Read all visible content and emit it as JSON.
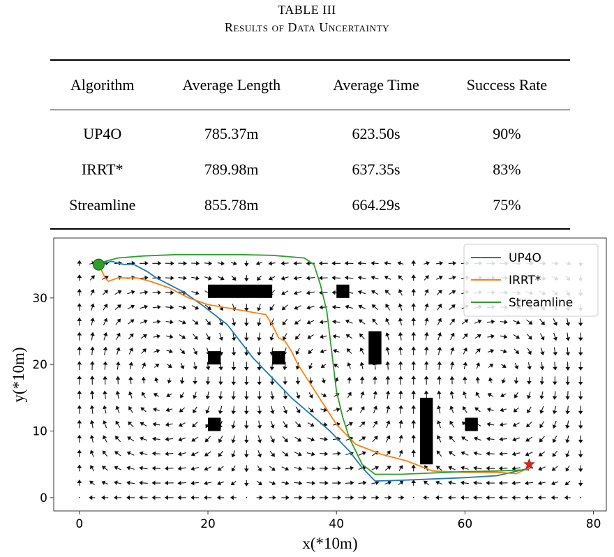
{
  "caption": {
    "label": "TABLE III",
    "title": "Results of Data Uncertainty"
  },
  "table": {
    "headers": [
      "Algorithm",
      "Average Length",
      "Average Time",
      "Success Rate"
    ],
    "rows": [
      [
        "UP4O",
        "785.37m",
        "623.50s",
        "90%"
      ],
      [
        "IRRT*",
        "789.98m",
        "637.35s",
        "83%"
      ],
      [
        "Streamline",
        "855.78m",
        "664.29s",
        "75%"
      ]
    ]
  },
  "chart_data": {
    "type": "line",
    "xlabel": "x(*10m)",
    "ylabel": "y(*10m)",
    "xlim": [
      -4,
      82
    ],
    "ylim": [
      -2,
      39
    ],
    "xticks": [
      "0",
      "20",
      "40",
      "60",
      "80"
    ],
    "yticks": [
      "0",
      "10",
      "20",
      "30"
    ],
    "legend": "top-right",
    "start": {
      "x": 3,
      "y": 35,
      "color": "#2ca02c"
    },
    "goal": {
      "x": 70,
      "y": 5,
      "color": "#d62728"
    },
    "obstacles": [
      {
        "x0": 20,
        "y0": 30,
        "x1": 30,
        "y1": 32
      },
      {
        "x0": 40,
        "y0": 30,
        "x1": 42,
        "y1": 32
      },
      {
        "x0": 20,
        "y0": 20,
        "x1": 22,
        "y1": 22
      },
      {
        "x0": 30,
        "y0": 20,
        "x1": 32,
        "y1": 22
      },
      {
        "x0": 45,
        "y0": 20,
        "x1": 47,
        "y1": 25
      },
      {
        "x0": 53,
        "y0": 5,
        "x1": 55,
        "y1": 15
      },
      {
        "x0": 60,
        "y0": 10,
        "x1": 62,
        "y1": 12
      },
      {
        "x0": 20,
        "y0": 10,
        "x1": 22,
        "y1": 12
      }
    ],
    "series": [
      {
        "name": "UP4O",
        "color": "#1f77b4",
        "x": [
          3,
          5,
          7,
          8.5,
          9.5,
          10.5,
          12,
          14,
          16,
          17.5,
          19,
          21,
          23,
          25,
          27,
          30,
          33,
          36,
          39,
          42,
          44,
          46,
          50,
          55,
          60,
          65,
          69.5
        ],
        "y": [
          35,
          35.5,
          35,
          35,
          34.5,
          34,
          33,
          32,
          31,
          30,
          29,
          27.5,
          26,
          23.5,
          21,
          18,
          15,
          12.5,
          10,
          7,
          4.5,
          2.5,
          2.6,
          2.8,
          3,
          3.3,
          4.3
        ]
      },
      {
        "name": "IRRT*",
        "color": "#ff7f0e",
        "x": [
          3,
          4,
          4.5,
          6,
          9,
          11,
          14,
          17,
          20,
          23,
          26,
          29,
          30,
          31,
          32,
          33,
          34,
          36,
          38,
          40,
          43,
          47,
          51,
          55,
          60,
          65,
          68,
          70
        ],
        "y": [
          35,
          33,
          32.5,
          33,
          33,
          32.5,
          31.5,
          30,
          29,
          28.5,
          28,
          27.5,
          26,
          24,
          23.5,
          22,
          20,
          17,
          14,
          11,
          8,
          6.5,
          5.5,
          4,
          3.8,
          3.8,
          3.6,
          4.5
        ]
      },
      {
        "name": "Streamline",
        "color": "#2ca02c",
        "x": [
          3,
          4,
          6,
          10,
          15,
          20,
          25,
          30,
          35,
          36.5,
          37.5,
          38.5,
          39,
          39.5,
          40,
          41,
          42,
          43,
          44,
          46,
          50,
          55,
          60,
          65,
          70
        ],
        "y": [
          35,
          35.5,
          36,
          36.3,
          36.5,
          36.5,
          36.5,
          36.4,
          36,
          35,
          32,
          28,
          24,
          20,
          16,
          12,
          9,
          7,
          5,
          3.5,
          3.5,
          3.7,
          3.9,
          4,
          4.2
        ]
      }
    ]
  }
}
